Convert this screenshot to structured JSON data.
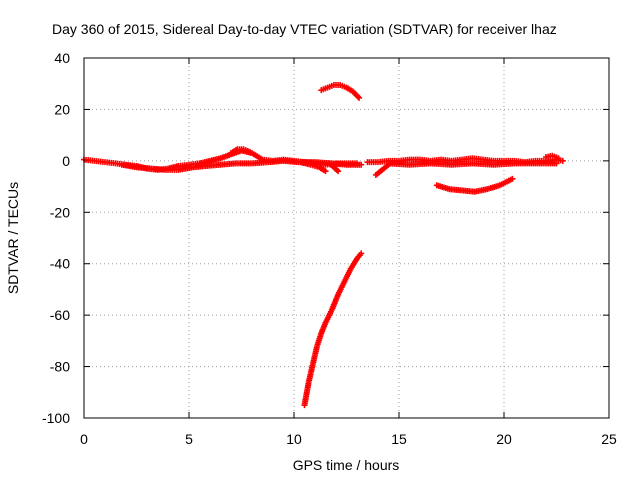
{
  "chart_data": {
    "type": "scatter",
    "title": "Day 360 of 2015, Sidereal Day-to-day VTEC variation (SDTVAR) for receiver lhaz",
    "xlabel": "GPS time / hours",
    "ylabel": "SDTVAR / TECUs",
    "xlim": [
      0,
      25
    ],
    "ylim": [
      -100,
      40
    ],
    "xticks": [
      "0",
      "5",
      "10",
      "15",
      "20",
      "25"
    ],
    "yticks": [
      "-100",
      "-80",
      "-60",
      "-40",
      "-20",
      "0",
      "20",
      "40"
    ],
    "grid": true,
    "marker": "plus",
    "color": "#ff0000",
    "segments": [
      {
        "x": [
          0,
          0.5,
          1,
          1.5,
          2,
          2.5,
          3,
          3.5,
          4,
          4.5,
          5,
          5.5,
          6,
          6.5,
          7,
          7.5,
          8,
          8.5,
          9,
          9.5,
          10,
          10.5,
          11,
          11.5,
          12,
          12.5,
          13
        ],
        "y": [
          0.5,
          0,
          -0.5,
          -1,
          -1.5,
          -2,
          -3,
          -3.5,
          -3,
          -2,
          -1.5,
          -1,
          0,
          1,
          2.5,
          4,
          3,
          0.5,
          0,
          0.5,
          0,
          -0.5,
          -1,
          -1.5,
          -1,
          -1,
          -1
        ]
      },
      {
        "x": [
          1.8,
          2.5,
          3.2,
          3.9,
          4.5,
          5.2,
          5.8,
          6.5,
          7.2,
          8,
          8.8,
          9.5,
          10.2,
          11,
          11.8,
          12.5,
          13.2
        ],
        "y": [
          -1.5,
          -2.5,
          -3,
          -3.5,
          -3.5,
          -2.5,
          -2,
          -1.5,
          -1,
          -1,
          -0.5,
          0,
          -0.5,
          -0.5,
          -1,
          -1.5,
          -1.5
        ]
      },
      {
        "x": [
          7,
          7.3,
          7.6,
          7.9
        ],
        "y": [
          3,
          4.5,
          4.5,
          3.5
        ]
      },
      {
        "x": [
          10.3,
          10.8,
          11.2,
          11.5
        ],
        "y": [
          -0.5,
          -1.5,
          -2.5,
          -4
        ]
      },
      {
        "x": [
          11.7,
          11.9,
          12.1
        ],
        "y": [
          -1,
          -2.5,
          -4
        ]
      },
      {
        "x": [
          13.5,
          14,
          14.5,
          15,
          15.5,
          16,
          16.5,
          17,
          17.5,
          18,
          18.5,
          19,
          19.5,
          20,
          20.5,
          21,
          21.5,
          22,
          22.5,
          22.8
        ],
        "y": [
          -0.5,
          -0.5,
          0,
          0,
          0.5,
          0.5,
          0,
          0.5,
          0,
          0.5,
          1,
          0.5,
          0,
          0,
          0,
          -0.5,
          0,
          0,
          0.5,
          0
        ]
      },
      {
        "x": [
          14.5,
          15.5,
          16.5,
          17.5,
          18.5,
          19.5,
          20.5,
          21.5,
          22.5
        ],
        "y": [
          -1,
          -1.5,
          -1,
          -1.5,
          -1,
          -1.5,
          -1,
          -1,
          -1
        ]
      },
      {
        "x": [
          22,
          22.3,
          22.6
        ],
        "y": [
          1.5,
          2,
          1
        ]
      },
      {
        "x": [
          13.9,
          14.2,
          14.5
        ],
        "y": [
          -5.5,
          -3.5,
          -1.5
        ]
      },
      {
        "x": [
          11.3,
          11.6,
          11.9,
          12.2,
          12.5,
          12.8,
          13.1
        ],
        "y": [
          27.5,
          28.5,
          29.5,
          29.5,
          28.5,
          27,
          24.5
        ]
      },
      {
        "x": [
          16.8,
          17.4,
          18,
          18.6,
          19.2,
          19.8,
          20.4
        ],
        "y": [
          -9.5,
          -11,
          -11.5,
          -12,
          -11,
          -9.5,
          -7
        ]
      },
      {
        "x": [
          10.5,
          10.7,
          10.9,
          11.1,
          11.3,
          11.5,
          11.8,
          12.1,
          12.4,
          12.7,
          13.0,
          13.2
        ],
        "y": [
          -95,
          -86,
          -79,
          -72,
          -67,
          -63,
          -58,
          -52,
          -47,
          -42,
          -38,
          -36
        ]
      }
    ]
  }
}
